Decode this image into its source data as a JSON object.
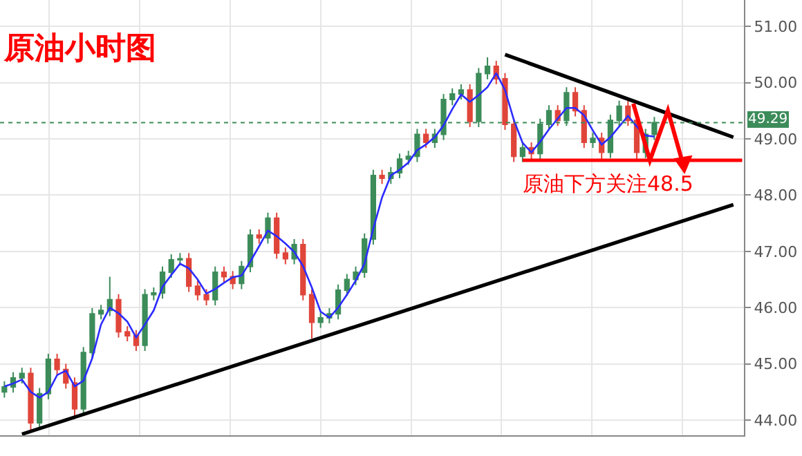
{
  "chart_data": {
    "type": "candlestick",
    "title": "原油小时图",
    "categories": [
      null,
      null,
      null,
      null,
      null,
      null,
      null,
      null,
      null,
      null,
      null,
      null,
      null,
      null,
      null,
      null,
      null,
      null,
      null,
      null,
      null,
      null,
      null,
      null,
      null,
      null,
      null,
      null,
      null,
      null,
      null,
      null,
      null,
      null,
      null,
      null,
      null,
      null,
      null,
      null,
      null,
      null,
      null,
      null,
      null,
      null,
      null,
      null,
      null,
      null,
      null,
      null,
      null,
      null,
      null,
      null,
      null,
      null,
      null,
      null,
      null,
      null,
      null,
      null,
      null,
      null,
      null,
      null,
      null,
      null,
      null,
      null,
      null,
      null,
      null,
      null,
      null,
      null,
      null,
      null,
      null,
      null,
      null,
      null,
      null
    ],
    "ohlc": [
      [
        44.5,
        44.69,
        44.4,
        44.59
      ],
      [
        44.59,
        44.85,
        44.49,
        44.75
      ],
      [
        44.75,
        44.93,
        44.65,
        44.83
      ],
      [
        44.83,
        44.93,
        43.78,
        43.95
      ],
      [
        43.95,
        44.57,
        43.85,
        44.47
      ],
      [
        44.47,
        45.18,
        44.37,
        45.08
      ],
      [
        45.08,
        45.18,
        44.8,
        44.9
      ],
      [
        44.9,
        45.0,
        44.56,
        44.66
      ],
      [
        44.66,
        44.76,
        44.02,
        44.2
      ],
      [
        44.2,
        45.3,
        44.1,
        45.2
      ],
      [
        45.2,
        45.99,
        45.1,
        45.89
      ],
      [
        45.89,
        46.05,
        45.79,
        45.95
      ],
      [
        45.95,
        46.55,
        45.85,
        46.14
      ],
      [
        46.14,
        46.24,
        45.47,
        45.57
      ],
      [
        45.57,
        45.67,
        45.4,
        45.5
      ],
      [
        45.5,
        45.6,
        45.23,
        45.33
      ],
      [
        45.33,
        46.33,
        45.23,
        46.23
      ],
      [
        46.23,
        46.36,
        46.13,
        46.26
      ],
      [
        46.26,
        46.73,
        46.16,
        46.63
      ],
      [
        46.63,
        46.95,
        46.53,
        46.85
      ],
      [
        46.85,
        46.97,
        46.75,
        46.87
      ],
      [
        46.87,
        46.97,
        46.28,
        46.38
      ],
      [
        46.38,
        46.48,
        46.13,
        46.23
      ],
      [
        46.23,
        46.33,
        46.04,
        46.14
      ],
      [
        46.14,
        46.73,
        46.04,
        46.63
      ],
      [
        46.63,
        46.73,
        46.45,
        46.55
      ],
      [
        46.55,
        46.65,
        46.33,
        46.43
      ],
      [
        46.43,
        46.83,
        46.33,
        46.73
      ],
      [
        46.73,
        47.39,
        46.63,
        47.29
      ],
      [
        47.29,
        47.39,
        47.14,
        47.24
      ],
      [
        47.24,
        47.69,
        47.14,
        47.59
      ],
      [
        47.59,
        47.69,
        46.87,
        46.97
      ],
      [
        46.97,
        47.07,
        46.77,
        46.87
      ],
      [
        46.87,
        47.22,
        46.77,
        47.12
      ],
      [
        47.12,
        47.22,
        46.13,
        46.23
      ],
      [
        46.23,
        46.33,
        45.45,
        45.74
      ],
      [
        45.74,
        45.92,
        45.64,
        45.82
      ],
      [
        45.82,
        45.99,
        45.72,
        45.89
      ],
      [
        45.89,
        46.41,
        45.79,
        46.31
      ],
      [
        46.31,
        46.6,
        46.21,
        46.5
      ],
      [
        46.5,
        46.73,
        46.4,
        46.63
      ],
      [
        46.63,
        47.32,
        46.53,
        47.22
      ],
      [
        47.22,
        48.45,
        47.12,
        48.35
      ],
      [
        48.35,
        48.45,
        48.2,
        48.3
      ],
      [
        48.3,
        48.5,
        48.2,
        48.4
      ],
      [
        48.4,
        48.74,
        48.3,
        48.64
      ],
      [
        48.64,
        48.79,
        48.54,
        48.69
      ],
      [
        48.69,
        49.18,
        48.59,
        49.08
      ],
      [
        49.08,
        49.18,
        48.84,
        48.94
      ],
      [
        48.94,
        49.18,
        48.84,
        49.08
      ],
      [
        49.08,
        49.8,
        48.98,
        49.7
      ],
      [
        49.7,
        49.9,
        49.6,
        49.8
      ],
      [
        49.8,
        49.97,
        49.7,
        49.87
      ],
      [
        49.87,
        49.97,
        49.21,
        49.31
      ],
      [
        49.31,
        50.26,
        49.21,
        50.16
      ],
      [
        50.16,
        50.45,
        50.06,
        50.29
      ],
      [
        50.29,
        50.39,
        49.97,
        50.07
      ],
      [
        50.07,
        50.17,
        49.16,
        49.26
      ],
      [
        49.26,
        49.36,
        48.59,
        48.69
      ],
      [
        48.69,
        48.94,
        48.59,
        48.84
      ],
      [
        48.84,
        48.94,
        48.6,
        48.74
      ],
      [
        48.74,
        49.36,
        48.64,
        49.26
      ],
      [
        49.26,
        49.6,
        49.16,
        49.5
      ],
      [
        49.5,
        49.6,
        49.23,
        49.33
      ],
      [
        49.33,
        49.92,
        49.23,
        49.82
      ],
      [
        49.82,
        49.92,
        49.4,
        49.5
      ],
      [
        49.5,
        49.6,
        48.84,
        48.94
      ],
      [
        48.94,
        49.11,
        48.84,
        49.01
      ],
      [
        49.01,
        49.11,
        48.62,
        48.76
      ],
      [
        48.76,
        49.43,
        48.66,
        49.33
      ],
      [
        49.33,
        49.68,
        49.23,
        49.58
      ],
      [
        49.58,
        49.68,
        49.23,
        49.33
      ],
      [
        49.33,
        49.43,
        48.62,
        48.76
      ],
      [
        48.76,
        49.18,
        48.66,
        49.08
      ],
      [
        49.08,
        49.39,
        48.98,
        49.29
      ],
      null,
      null,
      null,
      null,
      null,
      null,
      null,
      null,
      null,
      null
    ],
    "series": [
      {
        "type": "line",
        "color": "#2b2bff",
        "values": [
          44.6,
          44.65,
          44.72,
          44.5,
          44.4,
          44.5,
          44.8,
          44.88,
          44.6,
          44.7,
          45.1,
          45.7,
          46.0,
          45.9,
          45.75,
          45.47,
          45.7,
          45.95,
          46.37,
          46.58,
          46.78,
          46.7,
          46.5,
          46.25,
          46.33,
          46.44,
          46.54,
          46.57,
          46.82,
          47.09,
          47.37,
          47.27,
          47.14,
          46.99,
          46.74,
          46.36,
          45.93,
          45.82,
          46.0,
          46.23,
          46.48,
          46.78,
          47.4,
          47.96,
          48.35,
          48.45,
          48.58,
          48.8,
          48.9,
          49.03,
          49.24,
          49.53,
          49.79,
          49.66,
          49.78,
          49.92,
          50.17,
          49.87,
          49.34,
          48.93,
          48.76,
          48.95,
          49.17,
          49.36,
          49.55,
          49.55,
          49.42,
          49.15,
          48.9,
          49.03,
          49.22,
          49.41,
          49.22,
          49.06,
          49.04,
          null,
          null,
          null,
          null,
          null,
          null,
          null,
          null,
          null,
          null
        ]
      },
      {
        "type": "line",
        "color": "#000000",
        "values": [
          null,
          null,
          null,
          null,
          null,
          null,
          null,
          null,
          null,
          null,
          null,
          null,
          null,
          null,
          null,
          null,
          null,
          null,
          null,
          null,
          null,
          null,
          null,
          null,
          null,
          null,
          null,
          null,
          null,
          null,
          null,
          null,
          null,
          null,
          null,
          null,
          null,
          null,
          null,
          null,
          null,
          null,
          null,
          null,
          null,
          null,
          null,
          null,
          null,
          null,
          null,
          null,
          null,
          null,
          null,
          null,
          null,
          50.5,
          null,
          null,
          null,
          null,
          null,
          null,
          null,
          null,
          null,
          null,
          null,
          null,
          null,
          null,
          null,
          null,
          null,
          null,
          null,
          null,
          null,
          null,
          null,
          null,
          null,
          49.03,
          null
        ]
      },
      {
        "type": "line",
        "color": "#000000",
        "values": [
          null,
          null,
          43.75,
          null,
          null,
          null,
          null,
          null,
          null,
          null,
          null,
          null,
          null,
          null,
          null,
          null,
          null,
          null,
          null,
          null,
          null,
          null,
          null,
          null,
          null,
          null,
          null,
          null,
          null,
          null,
          null,
          null,
          null,
          null,
          null,
          null,
          null,
          null,
          null,
          null,
          null,
          null,
          null,
          null,
          null,
          null,
          null,
          null,
          null,
          null,
          null,
          null,
          null,
          null,
          null,
          null,
          null,
          null,
          null,
          null,
          null,
          null,
          null,
          null,
          null,
          null,
          null,
          null,
          null,
          null,
          null,
          null,
          null,
          null,
          null,
          null,
          null,
          null,
          null,
          null,
          null,
          null,
          null,
          47.83,
          null
        ]
      },
      {
        "type": "line",
        "color": "#ff0000",
        "values": [
          null,
          null,
          null,
          null,
          null,
          null,
          null,
          null,
          null,
          null,
          null,
          null,
          null,
          null,
          null,
          null,
          null,
          null,
          null,
          null,
          null,
          null,
          null,
          null,
          null,
          null,
          null,
          null,
          null,
          null,
          null,
          null,
          null,
          null,
          null,
          null,
          null,
          null,
          null,
          null,
          null,
          null,
          null,
          null,
          null,
          null,
          null,
          null,
          null,
          null,
          null,
          null,
          null,
          null,
          null,
          null,
          null,
          null,
          null,
          48.62,
          null,
          null,
          null,
          null,
          null,
          null,
          null,
          null,
          null,
          null,
          null,
          null,
          null,
          null,
          null,
          null,
          null,
          null,
          null,
          null,
          null,
          null,
          null,
          null,
          48.62
        ]
      }
    ],
    "ref_lines": [
      {
        "axis": "y",
        "value": 49.29,
        "label": "49.29",
        "color": "#3c8c5a",
        "line_style": "dotted"
      }
    ],
    "annotations": [
      "原油下方关注48.5"
    ],
    "ylim": [
      43.73,
      51.47
    ],
    "yticks": [
      {
        "value": 44,
        "label": "44.00"
      },
      {
        "value": 45,
        "label": "45.00"
      },
      {
        "value": 46,
        "label": "46.00"
      },
      {
        "value": 47,
        "label": "47.00"
      },
      {
        "value": 48,
        "label": "48.00"
      },
      {
        "value": 49,
        "label": "49.00"
      },
      {
        "value": 50,
        "label": "50.00"
      },
      {
        "value": 51,
        "label": "51.00"
      }
    ],
    "grid": true,
    "line_style": "solid",
    "marker": "none"
  }
}
